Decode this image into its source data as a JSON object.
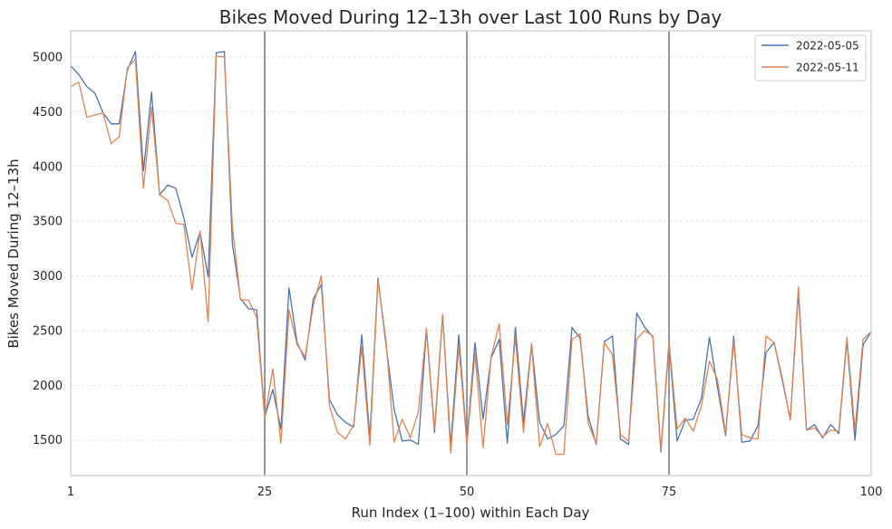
{
  "chart_data": {
    "type": "line",
    "title": "Bikes Moved During 12–13h over Last 100 Runs by Day",
    "xlabel": "Run Index (1–100) within Each Day",
    "ylabel": "Bikes Moved During 12–13h",
    "xlim": [
      1,
      100
    ],
    "ylim": [
      1175,
      5240
    ],
    "x_ticks": [
      "1",
      "25",
      "50",
      "75",
      "100"
    ],
    "y_ticks": [
      "1500",
      "2000",
      "2500",
      "3000",
      "3500",
      "4000",
      "4500",
      "5000"
    ],
    "vertical_markers": [
      25,
      50,
      75
    ],
    "grid": "horizontal dashed",
    "legend_position": "top-right",
    "series": [
      {
        "name": "2022-05-05",
        "color": "#4c72b0",
        "values": [
          4920,
          4840,
          4730,
          4670,
          4490,
          4390,
          4390,
          4880,
          5050,
          3960,
          4680,
          3740,
          3830,
          3800,
          3530,
          3170,
          3400,
          2990,
          5040,
          5050,
          3290,
          2790,
          2700,
          2690,
          1710,
          1960,
          1600,
          2890,
          2390,
          2230,
          2790,
          2920,
          1870,
          1730,
          1660,
          1620,
          2460,
          1520,
          2980,
          2370,
          1780,
          1490,
          1500,
          1460,
          2510,
          1570,
          2640,
          1450,
          2460,
          1480,
          2390,
          1690,
          2250,
          2420,
          1470,
          2530,
          1660,
          2380,
          1660,
          1510,
          1550,
          1630,
          2530,
          2430,
          1720,
          1460,
          2400,
          2450,
          1510,
          1460,
          2660,
          2530,
          2440,
          1390,
          2380,
          1490,
          1680,
          1690,
          1880,
          2440,
          1980,
          1540,
          2450,
          1480,
          1490,
          1630,
          2300,
          2390,
          2050,
          1690,
          2850,
          1590,
          1640,
          1520,
          1640,
          1560,
          2410,
          1500,
          2370,
          2490
        ]
      },
      {
        "name": "2022-05-11",
        "color": "#dd8452",
        "values": [
          4730,
          4770,
          4450,
          4470,
          4490,
          4210,
          4270,
          4900,
          4980,
          3800,
          4540,
          3740,
          3690,
          3480,
          3470,
          2870,
          3410,
          2580,
          5010,
          5000,
          3450,
          2780,
          2780,
          2620,
          1700,
          2150,
          1470,
          2690,
          2370,
          2260,
          2730,
          3000,
          1810,
          1570,
          1510,
          1640,
          2350,
          1450,
          2960,
          2410,
          1480,
          1690,
          1520,
          1760,
          2520,
          1600,
          2650,
          1380,
          2360,
          1460,
          2290,
          1430,
          2260,
          2560,
          1640,
          2430,
          1570,
          2370,
          1440,
          1650,
          1370,
          1370,
          2420,
          2470,
          1650,
          1470,
          2390,
          2280,
          1550,
          1490,
          2420,
          2500,
          2450,
          1410,
          2400,
          1600,
          1700,
          1580,
          1810,
          2220,
          2050,
          1560,
          2400,
          1550,
          1520,
          1510,
          2450,
          2390,
          2070,
          1680,
          2900,
          1590,
          1610,
          1530,
          1590,
          1580,
          2440,
          1590,
          2420,
          2490
        ]
      }
    ]
  }
}
